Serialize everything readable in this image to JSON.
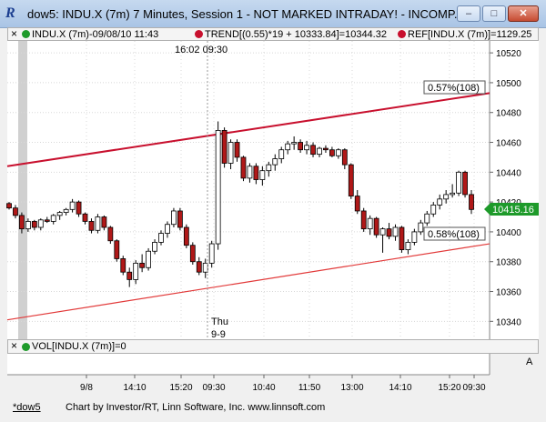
{
  "window": {
    "title": "dow5: INDU.X (7m) 7 Minutes, Session 1 - NOT MARKED INTRADAY! - INCOMP...",
    "icon": "R",
    "minimize": "–",
    "maximize": "□",
    "close": "✕"
  },
  "infobar": {
    "close_glyph": "×",
    "symbol": "INDU.X (7m)-09/08/10 11:43",
    "trend": "TREND[(0.55)*19 + 10333.84]=10344.32",
    "ref": "REF[INDU.X (7m)]=1129.25"
  },
  "volbar": {
    "close_glyph": "×",
    "text": "VOL[INDU.X (7m)]=0",
    "scale_letter": "A"
  },
  "session": {
    "time_label": "16:02 09:30",
    "day": "Thu",
    "date": "9-9"
  },
  "annotations": {
    "upper_pct": "0.57%(108)",
    "lower_pct": "0.58%(108)",
    "last_price": "10415.16"
  },
  "colors": {
    "upper_line": "#c8102e",
    "lower_line": "#e23a3a",
    "down_candle": "#b01818",
    "up_candle": "#ffffff",
    "grid": "#d8d8d8",
    "price_badge": "#1e9a2a"
  },
  "status": {
    "tab": "*dow5",
    "credit": "Chart by Investor/RT, Linn Software, Inc. www.linnsoft.com"
  },
  "chart_data": {
    "type": "candlestick",
    "yticks": [
      10340,
      10360,
      10380,
      10400,
      10420,
      10440,
      10460,
      10480,
      10500,
      10520
    ],
    "ylim": [
      10328,
      10528
    ],
    "xticks": [
      "9/8",
      "14:10",
      "15:20",
      "09:30",
      "10:40",
      "11:50",
      "13:00",
      "14:10",
      "15:20",
      "09:30"
    ],
    "trend_upper": {
      "start": 10444,
      "end": 10493
    },
    "trend_lower": {
      "start": 10341,
      "end": 10392
    },
    "last_price": 10415.16,
    "candles": [
      [
        10419,
        10420,
        10415,
        10416
      ],
      [
        10416,
        10418,
        10409,
        10411
      ],
      [
        10411,
        10413,
        10399,
        10402
      ],
      [
        10402,
        10409,
        10400,
        10407
      ],
      [
        10407,
        10408,
        10401,
        10403
      ],
      [
        10403,
        10409,
        10401,
        10408
      ],
      [
        10408,
        10410,
        10406,
        10407
      ],
      [
        10407,
        10412,
        10405,
        10411
      ],
      [
        10411,
        10414,
        10408,
        10413
      ],
      [
        10413,
        10416,
        10411,
        10415
      ],
      [
        10415,
        10422,
        10413,
        10420
      ],
      [
        10420,
        10421,
        10410,
        10412
      ],
      [
        10412,
        10413,
        10405,
        10407
      ],
      [
        10407,
        10409,
        10399,
        10401
      ],
      [
        10401,
        10412,
        10399,
        10410
      ],
      [
        10410,
        10411,
        10401,
        10403
      ],
      [
        10403,
        10404,
        10392,
        10394
      ],
      [
        10394,
        10395,
        10380,
        10382
      ],
      [
        10382,
        10384,
        10371,
        10373
      ],
      [
        10373,
        10376,
        10363,
        10368
      ],
      [
        10368,
        10381,
        10365,
        10379
      ],
      [
        10379,
        10385,
        10373,
        10376
      ],
      [
        10376,
        10389,
        10374,
        10387
      ],
      [
        10387,
        10395,
        10385,
        10393
      ],
      [
        10393,
        10401,
        10391,
        10399
      ],
      [
        10399,
        10407,
        10396,
        10405
      ],
      [
        10405,
        10416,
        10403,
        10414
      ],
      [
        10414,
        10416,
        10401,
        10403
      ],
      [
        10403,
        10405,
        10389,
        10391
      ],
      [
        10391,
        10393,
        10378,
        10380
      ],
      [
        10380,
        10383,
        10371,
        10373
      ],
      [
        10373,
        10382,
        10369,
        10379
      ],
      [
        10379,
        10394,
        10376,
        10392
      ],
      [
        10392,
        10474,
        10388,
        10468
      ],
      [
        10468,
        10470,
        10443,
        10446
      ],
      [
        10446,
        10462,
        10442,
        10460
      ],
      [
        10460,
        10462,
        10447,
        10450
      ],
      [
        10450,
        10451,
        10434,
        10436
      ],
      [
        10436,
        10446,
        10433,
        10444
      ],
      [
        10444,
        10446,
        10432,
        10435
      ],
      [
        10435,
        10444,
        10431,
        10441
      ],
      [
        10441,
        10447,
        10437,
        10445
      ],
      [
        10445,
        10452,
        10441,
        10449
      ],
      [
        10449,
        10457,
        10446,
        10455
      ],
      [
        10455,
        10461,
        10452,
        10459
      ],
      [
        10459,
        10464,
        10455,
        10460
      ],
      [
        10460,
        10462,
        10453,
        10455
      ],
      [
        10455,
        10461,
        10452,
        10458
      ],
      [
        10458,
        10460,
        10450,
        10452
      ],
      [
        10452,
        10457,
        10450,
        10456
      ],
      [
        10456,
        10458,
        10453,
        10455
      ],
      [
        10455,
        10457,
        10450,
        10451
      ],
      [
        10451,
        10456,
        10449,
        10455
      ],
      [
        10455,
        10456,
        10442,
        10445
      ],
      [
        10445,
        10446,
        10422,
        10424
      ],
      [
        10424,
        10428,
        10412,
        10414
      ],
      [
        10414,
        10416,
        10400,
        10402
      ],
      [
        10402,
        10411,
        10398,
        10409
      ],
      [
        10409,
        10410,
        10396,
        10398
      ],
      [
        10398,
        10403,
        10386,
        10402
      ],
      [
        10402,
        10406,
        10395,
        10397
      ],
      [
        10397,
        10405,
        10394,
        10403
      ],
      [
        10403,
        10404,
        10386,
        10388
      ],
      [
        10388,
        10395,
        10385,
        10393
      ],
      [
        10393,
        10402,
        10391,
        10400
      ],
      [
        10400,
        10408,
        10398,
        10406
      ],
      [
        10406,
        10414,
        10404,
        10412
      ],
      [
        10412,
        10420,
        10410,
        10418
      ],
      [
        10418,
        10425,
        10415,
        10422
      ],
      [
        10422,
        10428,
        10419,
        10425
      ],
      [
        10425,
        10432,
        10423,
        10426
      ],
      [
        10426,
        10441,
        10424,
        10440
      ],
      [
        10440,
        10441,
        10423,
        10425
      ],
      [
        10425,
        10428,
        10412,
        10415
      ]
    ]
  }
}
